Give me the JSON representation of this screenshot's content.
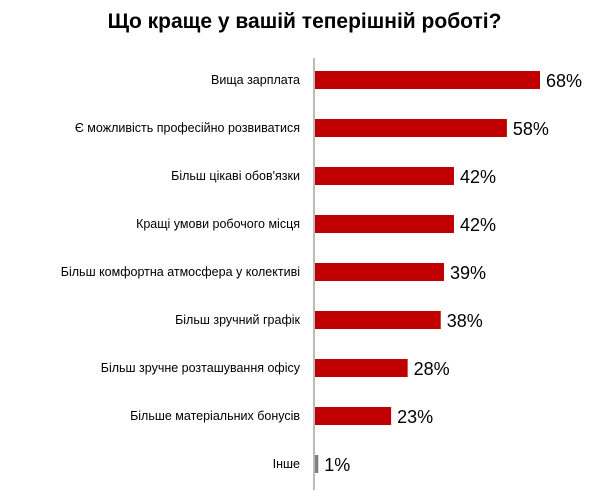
{
  "chart_data": {
    "type": "bar",
    "orientation": "horizontal",
    "title": "Що краще у вашій теперішній роботі?",
    "categories": [
      "Вища зарплата",
      "Є можливість професійно розвиватися",
      "Більш цікаві обов'язки",
      "Кращі  умови робочого місця",
      "Більш комфортна атмосфера у колективі",
      "Більш зручний графік",
      "Більш зручне розташування офісу",
      "Більше матеріальних бонусів",
      "Інше"
    ],
    "values": [
      68,
      58,
      42,
      42,
      39,
      38,
      28,
      23,
      1
    ],
    "value_labels": [
      "68%",
      "58%",
      "42%",
      "42%",
      "39%",
      "38%",
      "28%",
      "23%",
      "1%"
    ],
    "unit": "%",
    "xlim": [
      0,
      75
    ],
    "grid": false,
    "colors": {
      "main": "#C00000",
      "other": "#808080",
      "axis": "#A6A6A6"
    }
  }
}
